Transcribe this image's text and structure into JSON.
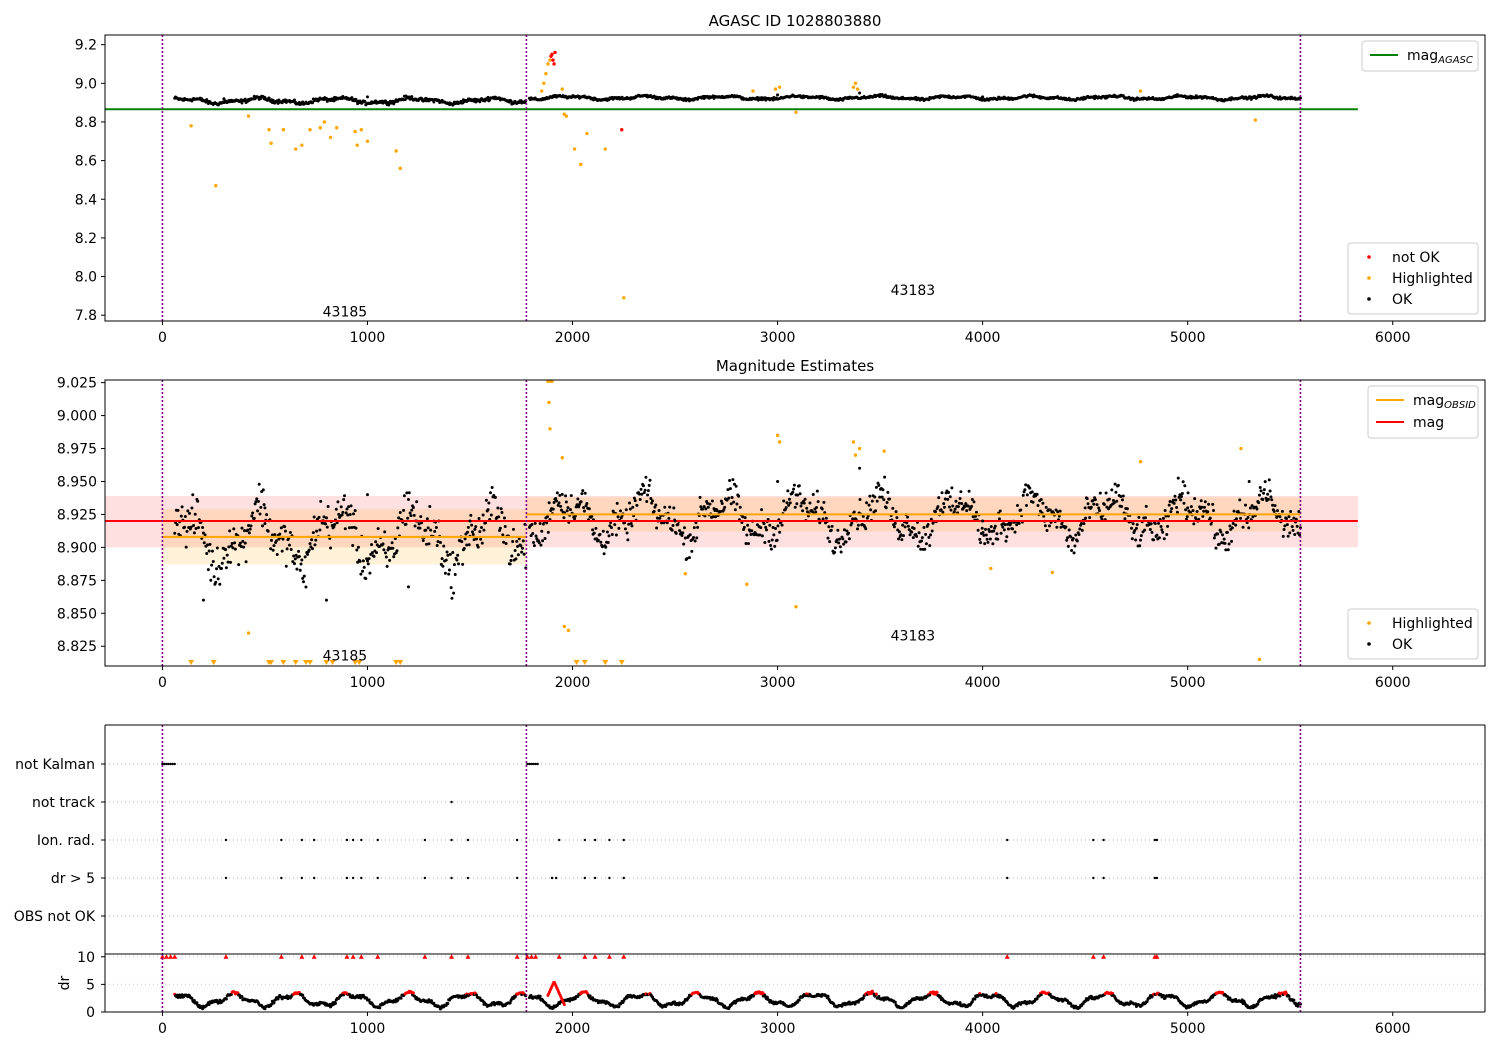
{
  "chart_data": [
    {
      "type": "scatter",
      "title": "AGASC ID 1028803880",
      "xlabel": "",
      "ylabel": "",
      "xlim": [
        -280,
        6450
      ],
      "ylim": [
        7.77,
        9.25
      ],
      "x_ticks": [
        0,
        1000,
        2000,
        3000,
        4000,
        5000,
        6000
      ],
      "y_ticks": [
        7.8,
        8.0,
        8.2,
        8.4,
        8.6,
        8.8,
        9.0,
        9.2
      ],
      "obsid_boundaries": [
        0,
        1775,
        5550
      ],
      "obsid_labels": [
        {
          "text": "43185",
          "x": 890,
          "y": 7.82
        },
        {
          "text": "43183",
          "x": 3660,
          "y": 7.93
        }
      ],
      "lines": [
        {
          "name": "mag_AGASC",
          "color": "#008000",
          "x": [
            -280,
            5830
          ],
          "y": [
            8.866,
            8.866
          ]
        }
      ],
      "legend_lines": [
        {
          "label": "mag",
          "sub": "AGASC",
          "color": "#008000"
        }
      ],
      "legend_lines_loc": "upper right",
      "legend_points": [
        {
          "label": "not OK",
          "color": "#ff0000"
        },
        {
          "label": "Highlighted",
          "color": "#ffa500"
        },
        {
          "label": "OK",
          "color": "#000000"
        }
      ],
      "legend_points_loc": "lower right",
      "baseline": {
        "segments": [
          {
            "x0": 60,
            "x1": 1775,
            "base": 8.91,
            "jitter": 0.018
          },
          {
            "x0": 1790,
            "x1": 5550,
            "base": 8.925,
            "jitter": 0.012
          }
        ]
      },
      "series": [
        {
          "name": "OK",
          "color": "#000000",
          "x": [
            300,
            650,
            1000,
            1400,
            1750,
            2100,
            2600,
            3000,
            3400,
            4000,
            4500,
            5000,
            5500
          ],
          "y": [
            8.92,
            8.9,
            8.93,
            8.89,
            8.91,
            8.92,
            8.92,
            8.94,
            8.95,
            8.93,
            8.92,
            8.93,
            8.92
          ]
        },
        {
          "name": "Highlighted",
          "color": "#ffa500",
          "x": [
            140,
            260,
            420,
            520,
            530,
            590,
            650,
            680,
            720,
            770,
            790,
            820,
            850,
            940,
            950,
            970,
            1000,
            1140,
            1160,
            1850,
            1860,
            1870,
            1880,
            1890,
            1950,
            1960,
            1970,
            2010,
            2040,
            2070,
            2160,
            2250,
            3090,
            3370,
            3380,
            3390,
            5330,
            4770,
            2880,
            2990,
            3010
          ],
          "y": [
            8.78,
            8.47,
            8.83,
            8.76,
            8.69,
            8.76,
            8.66,
            8.68,
            8.76,
            8.77,
            8.8,
            8.72,
            8.77,
            8.75,
            8.68,
            8.76,
            8.7,
            8.65,
            8.56,
            8.96,
            9.0,
            9.05,
            9.1,
            9.12,
            8.97,
            8.84,
            8.83,
            8.66,
            8.58,
            8.74,
            8.66,
            7.89,
            8.85,
            8.98,
            9.0,
            8.97,
            8.81,
            8.96,
            8.96,
            8.97,
            8.98
          ]
        },
        {
          "name": "not OK",
          "color": "#ff0000",
          "x": [
            1895,
            1900,
            1905,
            1910,
            1915,
            2240
          ],
          "y": [
            9.14,
            9.15,
            9.12,
            9.1,
            9.16,
            8.76
          ]
        }
      ]
    },
    {
      "type": "scatter",
      "title": "Magnitude Estimates",
      "xlabel": "",
      "ylabel": "",
      "xlim": [
        -280,
        6450
      ],
      "ylim": [
        8.81,
        9.027
      ],
      "x_ticks": [
        0,
        1000,
        2000,
        3000,
        4000,
        5000,
        6000
      ],
      "y_ticks": [
        8.825,
        8.85,
        8.875,
        8.9,
        8.925,
        8.95,
        8.975,
        9.0,
        9.025
      ],
      "obsid_boundaries": [
        0,
        1775,
        5550
      ],
      "obsid_labels": [
        {
          "text": "43185",
          "x": 890,
          "y": 8.818
        },
        {
          "text": "43183",
          "x": 3660,
          "y": 8.833
        }
      ],
      "lines": [
        {
          "name": "mag_OBSID_1",
          "color": "#ffa500",
          "x": [
            0,
            1775
          ],
          "y": [
            8.908,
            8.908
          ]
        },
        {
          "name": "mag_OBSID_2",
          "color": "#ffa500",
          "x": [
            1775,
            5550
          ],
          "y": [
            8.925,
            8.925
          ]
        },
        {
          "name": "mag",
          "color": "#ff0000",
          "x": [
            -280,
            5830
          ],
          "y": [
            8.92,
            8.92
          ]
        }
      ],
      "bands": [
        {
          "color": "#ff0000",
          "opacity": 0.12,
          "x0": -280,
          "x1": 5830,
          "y0": 8.9,
          "y1": 8.939
        },
        {
          "color": "#ffa500",
          "opacity": 0.15,
          "x0": 0,
          "x1": 1775,
          "y0": 8.887,
          "y1": 8.929
        },
        {
          "color": "#ffa500",
          "opacity": 0.15,
          "x0": 1775,
          "x1": 5550,
          "y0": 8.912,
          "y1": 8.938
        }
      ],
      "legend_lines": [
        {
          "label": "mag",
          "sub": "OBSID",
          "color": "#ffa500"
        },
        {
          "label": "mag",
          "sub": "",
          "color": "#ff0000"
        }
      ],
      "legend_lines_loc": "upper right",
      "legend_points": [
        {
          "label": "Highlighted",
          "color": "#ffa500"
        },
        {
          "label": "OK",
          "color": "#000000"
        }
      ],
      "legend_points_loc": "lower right",
      "baseline": {
        "segments": [
          {
            "x0": 60,
            "x1": 1775,
            "base": 8.908,
            "jitter": 0.03
          },
          {
            "x0": 1790,
            "x1": 5550,
            "base": 8.923,
            "jitter": 0.022
          }
        ]
      },
      "series": [
        {
          "name": "OK",
          "color": "#000000",
          "x": [
            200,
            500,
            800,
            1000,
            1200,
            1500,
            1700,
            2100,
            2500,
            3000,
            3400,
            4000,
            4500,
            5000,
            5300
          ],
          "y": [
            8.86,
            8.93,
            8.86,
            8.94,
            8.87,
            8.92,
            8.89,
            8.91,
            8.92,
            8.95,
            8.96,
            8.92,
            8.93,
            8.93,
            8.95
          ]
        },
        {
          "name": "Highlighted",
          "color": "#ffa500",
          "x": [
            140,
            250,
            420,
            520,
            530,
            590,
            650,
            700,
            720,
            800,
            830,
            940,
            960,
            1140,
            1160,
            1880,
            1885,
            1890,
            1895,
            1900,
            1950,
            1960,
            1980,
            2020,
            2060,
            2160,
            2240,
            2550,
            2850,
            3000,
            3010,
            3090,
            3370,
            3380,
            3400,
            3520,
            4040,
            4340,
            4770,
            5260,
            5350
          ],
          "y": [
            8.813,
            8.813,
            8.835,
            8.813,
            8.813,
            8.813,
            8.813,
            8.813,
            8.813,
            8.813,
            8.813,
            8.813,
            8.813,
            8.813,
            8.813,
            9.026,
            9.01,
            8.99,
            9.026,
            9.026,
            8.968,
            8.84,
            8.837,
            8.813,
            8.813,
            8.813,
            8.813,
            8.88,
            8.872,
            8.985,
            8.98,
            8.855,
            8.98,
            8.97,
            8.975,
            8.973,
            8.884,
            8.881,
            8.965,
            8.975,
            8.815
          ]
        }
      ]
    },
    {
      "type": "scatter",
      "title": "",
      "xlabel": "",
      "ylabel": "",
      "xlim": [
        -280,
        6450
      ],
      "x_ticks": [
        0,
        1000,
        2000,
        3000,
        4000,
        5000,
        6000
      ],
      "categories": [
        "not Kalman",
        "not track",
        "Ion. rad.",
        "dr > 5",
        "OBS not OK"
      ],
      "obsid_boundaries": [
        0,
        1775,
        5550
      ],
      "flags": [
        {
          "category": "not Kalman",
          "x": [
            0,
            10,
            20,
            30,
            40,
            50,
            60,
            1780,
            1790,
            1800,
            1810,
            1820,
            1830
          ]
        },
        {
          "category": "not track",
          "x": [
            1410
          ]
        },
        {
          "category": "Ion. rad.",
          "x": [
            310,
            580,
            680,
            740,
            900,
            930,
            970,
            1050,
            1280,
            1410,
            1490,
            1730,
            1935,
            2060,
            2110,
            2180,
            2250,
            4120,
            4540,
            4590,
            4840,
            4850
          ]
        },
        {
          "category": "dr > 5",
          "x": [
            310,
            580,
            680,
            740,
            900,
            930,
            970,
            1050,
            1280,
            1410,
            1490,
            1730,
            1900,
            1920,
            2060,
            2110,
            2180,
            2250,
            4120,
            4540,
            4590,
            4840,
            4850
          ]
        },
        {
          "category": "OBS not OK",
          "x": []
        }
      ]
    },
    {
      "type": "scatter",
      "title": "",
      "xlabel": "",
      "ylabel": "dr",
      "xlim": [
        -280,
        6450
      ],
      "ylim": [
        0,
        10.5
      ],
      "x_ticks": [
        0,
        1000,
        2000,
        3000,
        4000,
        5000,
        6000
      ],
      "y_ticks": [
        0,
        5,
        10
      ],
      "obsid_boundaries": [
        0,
        1775,
        5550
      ],
      "series": [
        {
          "name": "dr",
          "color": "#000000",
          "x": [
            100,
            500,
            1000,
            1500,
            1900,
            2500,
            3000,
            3500,
            4000,
            4500,
            5000,
            5500
          ],
          "y": [
            2,
            3,
            2.5,
            2,
            5.5,
            2,
            3,
            2.5,
            2,
            2.5,
            2,
            2
          ]
        },
        {
          "name": "dr > 5 markers",
          "color": "#ff0000",
          "x": [
            0,
            20,
            40,
            60,
            310,
            580,
            680,
            740,
            900,
            930,
            970,
            1050,
            1280,
            1410,
            1490,
            1730,
            1780,
            1800,
            1820,
            1935,
            2060,
            2110,
            2180,
            2250,
            4120,
            4540,
            4590,
            4840,
            4850
          ],
          "y": [
            10,
            10,
            10,
            10,
            10,
            10,
            10,
            10,
            10,
            10,
            10,
            10,
            10,
            10,
            10,
            10,
            10,
            10,
            10,
            10,
            10,
            10,
            10,
            10,
            10,
            10,
            10,
            10,
            10
          ]
        }
      ]
    }
  ]
}
